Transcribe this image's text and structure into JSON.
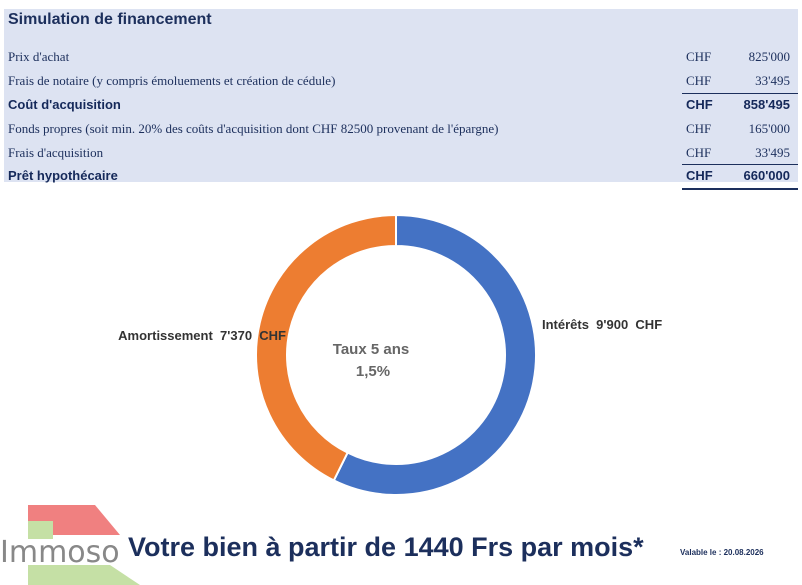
{
  "table": {
    "title": "Simulation de financement",
    "rows": [
      {
        "label": "Prix d'achat",
        "currency": "CHF",
        "value": "825'000",
        "bold": false
      },
      {
        "label": "Frais de notaire (y compris émoluements et création de cédule)",
        "currency": "CHF",
        "value": "33'495",
        "bold": false
      },
      {
        "label": "Coût d'acquisition",
        "currency": "CHF",
        "value": "858'495",
        "bold": true
      },
      {
        "label": "Fonds propres (soit min. 20% des coûts d'acquisition dont CHF 82500 provenant de l'épargne)",
        "currency": "CHF",
        "value": "165'000",
        "bold": false
      },
      {
        "label": "Frais d'acquisition",
        "currency": "CHF",
        "value": "33'495",
        "bold": false
      },
      {
        "label": "Prêt hypothécaire",
        "currency": "CHF",
        "value": "660'000",
        "bold": true
      }
    ]
  },
  "chart_data": {
    "type": "pie",
    "donut": true,
    "center_text": [
      "Taux 5 ans",
      "1,5%"
    ],
    "slices": [
      {
        "label": "Intérêts  9'900  CHF",
        "value": 9900,
        "color": "#4472c4"
      },
      {
        "label": "Amortissement  7'370  CHF",
        "value": 7370,
        "color": "#ed7d31"
      }
    ]
  },
  "logo": {
    "text": "Immoso"
  },
  "banner": {
    "text": "Votre bien à partir de 1440 Frs par mois*",
    "validity": "Valable le : 20.08.2026"
  },
  "colors": {
    "table_bg": "#dde3f2",
    "text_navy": "#1c2f5c",
    "logo_red": "#f08080",
    "logo_green": "#c5e0a5"
  }
}
